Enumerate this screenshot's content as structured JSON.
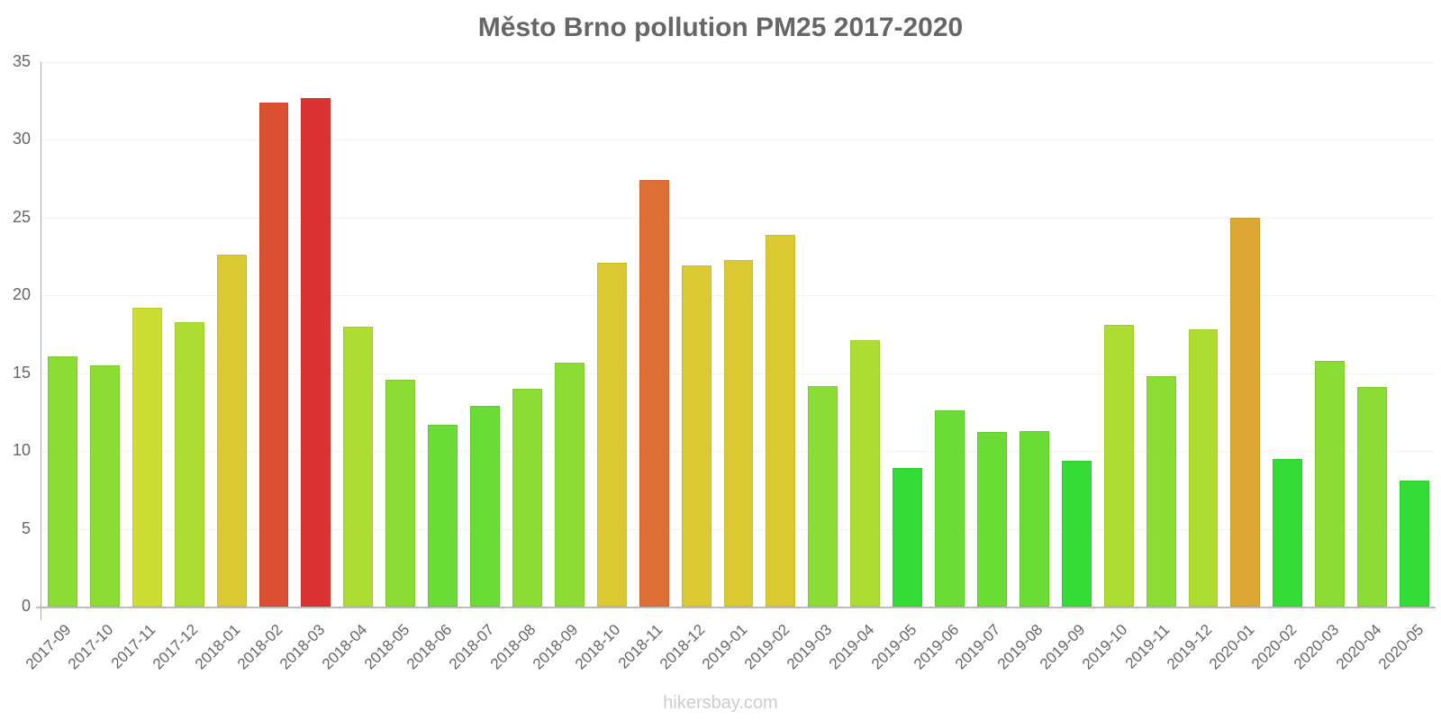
{
  "chart_data": {
    "type": "bar",
    "title": "Město Brno pollution PM25 2017-2020",
    "xlabel": "",
    "ylabel": "",
    "ylim": [
      0,
      35
    ],
    "yticks": [
      0,
      5,
      10,
      15,
      20,
      25,
      30,
      35
    ],
    "grid": true,
    "legend": null,
    "categories": [
      "2017-09",
      "2017-10",
      "2017-11",
      "2017-12",
      "2018-01",
      "2018-02",
      "2018-03",
      "2018-04",
      "2018-05",
      "2018-06",
      "2018-07",
      "2018-08",
      "2018-09",
      "2018-10",
      "2018-11",
      "2018-12",
      "2019-01",
      "2019-02",
      "2019-03",
      "2019-04",
      "2019-05",
      "2019-06",
      "2019-07",
      "2019-08",
      "2019-09",
      "2019-10",
      "2019-11",
      "2019-12",
      "2020-01",
      "2020-02",
      "2020-03",
      "2020-04",
      "2020-05"
    ],
    "values": [
      16.1,
      15.5,
      19.2,
      18.3,
      22.6,
      32.4,
      32.7,
      18.0,
      14.6,
      11.7,
      12.9,
      14.0,
      15.7,
      22.1,
      27.4,
      21.9,
      22.3,
      23.9,
      14.2,
      17.1,
      8.9,
      12.6,
      11.2,
      11.3,
      9.4,
      18.1,
      14.8,
      17.8,
      25.0,
      9.5,
      15.8,
      14.1,
      8.1
    ],
    "colors": [
      "#8bdc35",
      "#8bdc35",
      "#cddd33",
      "#addd33",
      "#dbc933",
      "#db5033",
      "#db3333",
      "#addd33",
      "#8bdc35",
      "#6adc35",
      "#6adc35",
      "#8bdc35",
      "#8bdc35",
      "#dbc933",
      "#dc6f33",
      "#dbc933",
      "#dbc933",
      "#dbc933",
      "#8bdc35",
      "#addd33",
      "#35dc35",
      "#6adc35",
      "#6adc35",
      "#6adc35",
      "#35dc35",
      "#addd33",
      "#8bdc35",
      "#addd33",
      "#dca833",
      "#35dc35",
      "#8bdc35",
      "#8bdc35",
      "#35dc35"
    ]
  },
  "footer": {
    "watermark": "hikersbay.com"
  }
}
